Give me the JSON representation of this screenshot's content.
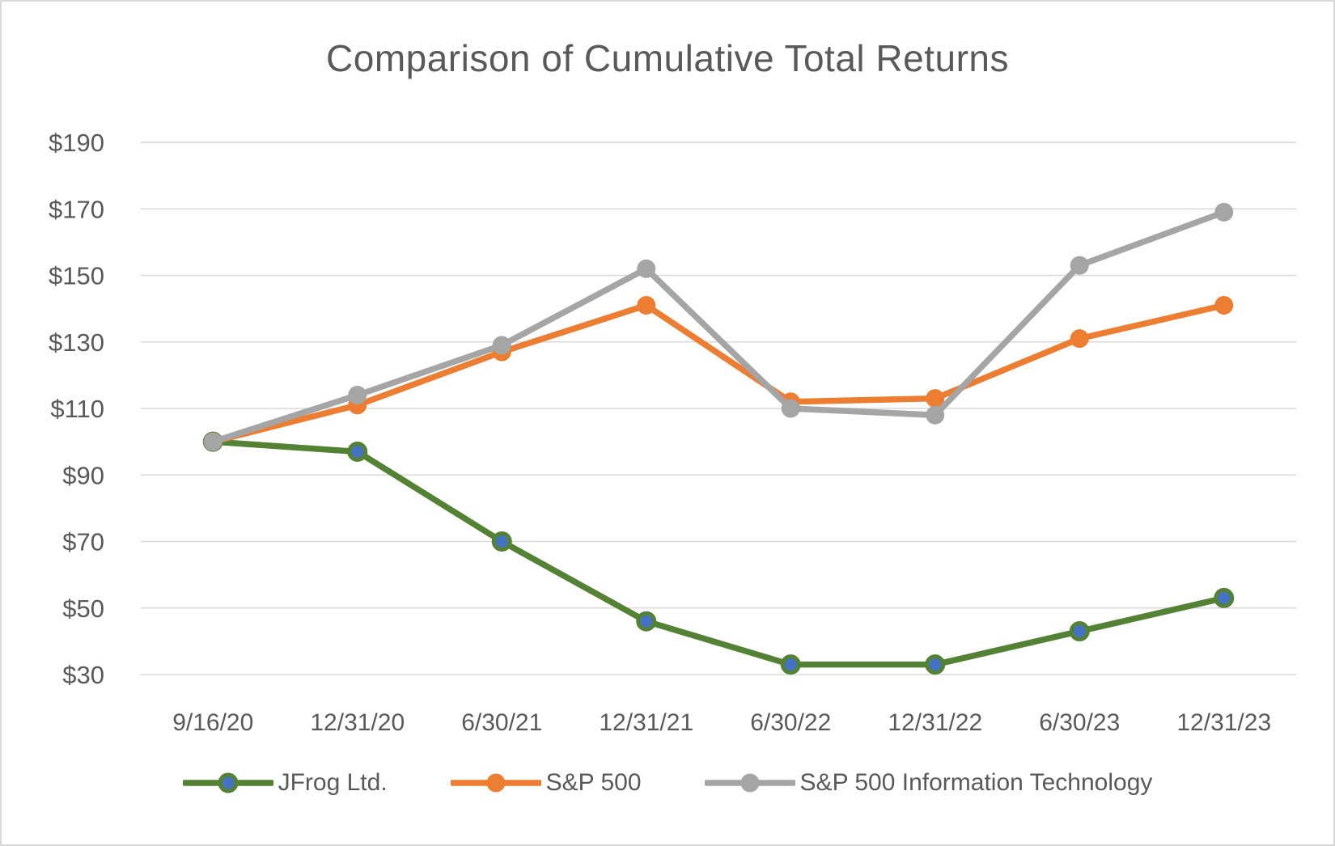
{
  "chart_data": {
    "type": "line",
    "title": "Comparison of Cumulative Total Returns",
    "categories": [
      "9/16/20",
      "12/31/20",
      "6/30/21",
      "12/31/21",
      "6/30/22",
      "12/31/22",
      "6/30/23",
      "12/31/23"
    ],
    "series": [
      {
        "name": "JFrog Ltd.",
        "values": [
          100,
          97,
          70,
          46,
          33,
          33,
          43,
          53
        ],
        "line_color": "#548235",
        "marker_color": "#4472C4",
        "marker_stroke": "#548235"
      },
      {
        "name": "S&P 500",
        "values": [
          100,
          111,
          127,
          141,
          112,
          113,
          131,
          141
        ],
        "line_color": "#ED7D31",
        "marker_color": "#ED7D31",
        "marker_stroke": "#ED7D31"
      },
      {
        "name": "S&P 500 Information Technology",
        "values": [
          100,
          114,
          129,
          152,
          110,
          108,
          153,
          169
        ],
        "line_color": "#A5A5A5",
        "marker_color": "#A5A5A5",
        "marker_stroke": "#A5A5A5"
      }
    ],
    "y_ticks": [
      {
        "value": 190,
        "label": "$190"
      },
      {
        "value": 170,
        "label": "$170"
      },
      {
        "value": 150,
        "label": "$150"
      },
      {
        "value": 130,
        "label": "$130"
      },
      {
        "value": 110,
        "label": "$110"
      },
      {
        "value": 90,
        "label": "$90"
      },
      {
        "value": 70,
        "label": "$70"
      },
      {
        "value": 50,
        "label": "$50"
      },
      {
        "value": 30,
        "label": "$30"
      }
    ],
    "ylim": [
      30,
      190
    ],
    "xlabel": "",
    "ylabel": "",
    "grid": "horizontal",
    "legend_position": "bottom",
    "colors": {
      "grid": "#D9D9D9",
      "text": "#595959",
      "border": "#D9D9D9",
      "background": "#FFFFFF"
    }
  }
}
